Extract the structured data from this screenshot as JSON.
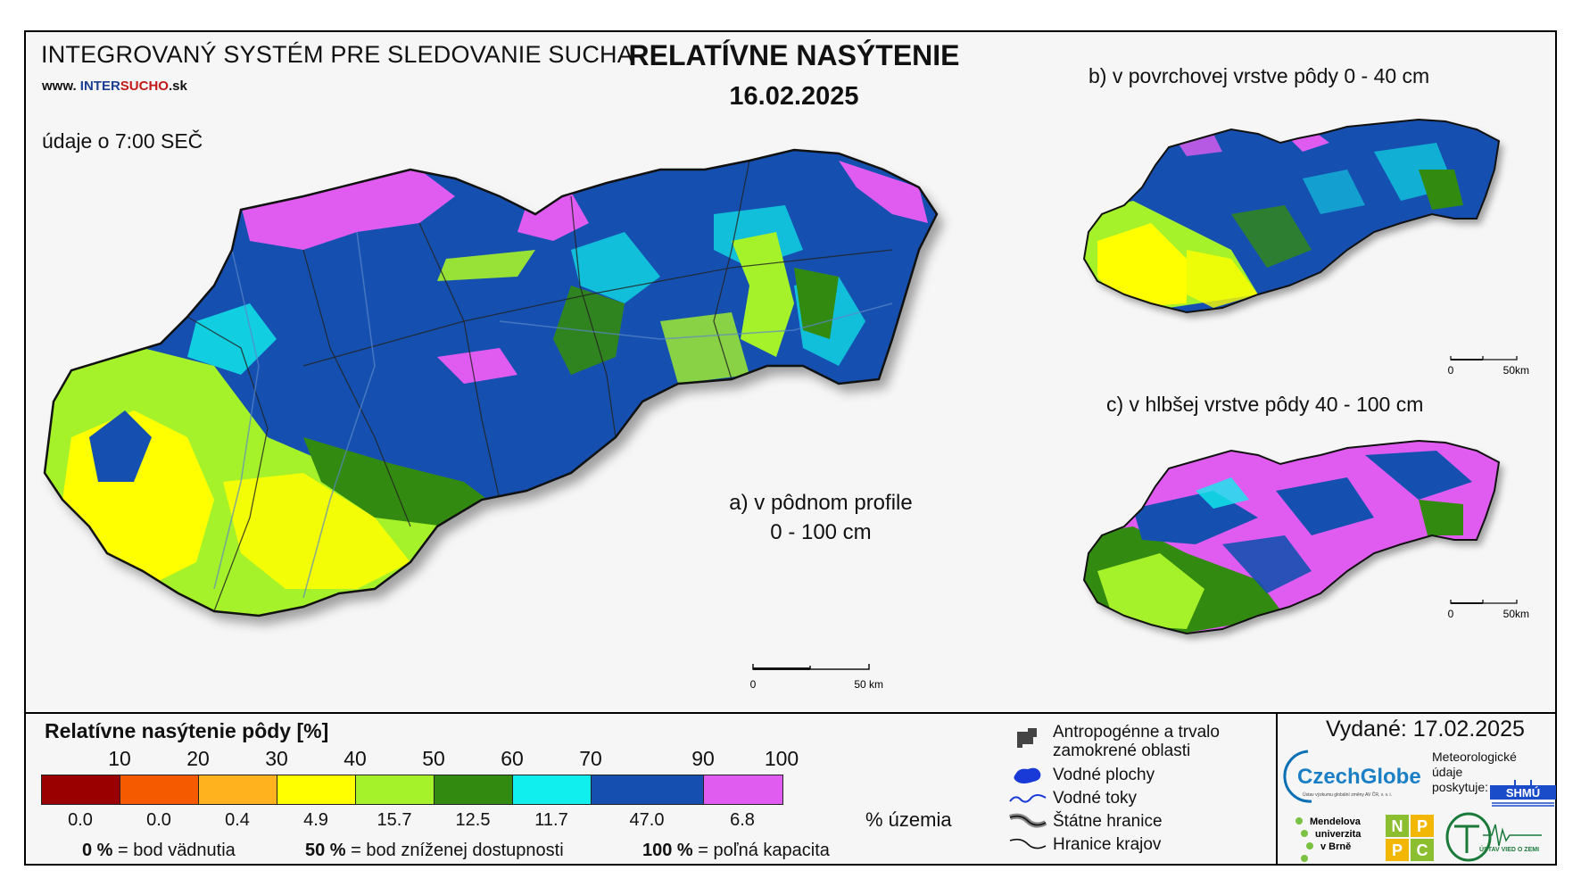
{
  "header": {
    "system_title": "INTEGROVANÝ SYSTÉM PRE SLEDOVANIE SUCHA",
    "www_prefix": "www. ",
    "www_inter": "INTER",
    "www_sucho": "SUCHO",
    "www_suffix": ".sk",
    "data_time": "údaje o 7:00 SEČ",
    "main_title": "RELATÍVNE NASÝTENIE",
    "main_date": "16.02.2025"
  },
  "maps": {
    "a_label_line1": "a) v pôdnom profile",
    "a_label_line2": "0 - 100 cm",
    "b_label": "b) v povrchovej vrstve pôdy 0 - 40 cm",
    "c_label": "c) v hlbšej vrstve pôdy 40 - 100 cm",
    "scale_zero": "0",
    "scale_main": "50 km",
    "scale_small": "50km"
  },
  "legend": {
    "title": "Relatívne nasýtenie pôdy [%]",
    "ticks": [
      "10",
      "20",
      "30",
      "40",
      "50",
      "60",
      "70",
      "90",
      "100"
    ],
    "classes": [
      {
        "color": "#9a0000",
        "share": "0.0"
      },
      {
        "color": "#f65a00",
        "share": "0.0"
      },
      {
        "color": "#ffb21e",
        "share": "0.4"
      },
      {
        "color": "#ffff00",
        "share": "4.9"
      },
      {
        "color": "#a6f22a",
        "share": "15.7"
      },
      {
        "color": "#338a10",
        "share": "12.5"
      },
      {
        "color": "#11eeee",
        "share": "11.7"
      },
      {
        "color": "#1550b0",
        "share": "47.0"
      },
      {
        "color": "#e05cf0",
        "share": "6.8"
      }
    ],
    "share_unit": "% územia",
    "def1_value": "0 %",
    "def1_text": " = bod vädnutia",
    "def2_value": "50 %",
    "def2_text": " = bod zníženej dostupnosti",
    "def3_value": "100 %",
    "def3_text": " = poľná kapacita"
  },
  "symbols": {
    "anthropo_line1": "Antropogénne a trvalo",
    "anthropo_line2": "zamokrené oblasti",
    "water_areas": "Vodné plochy",
    "water_streams": "Vodné toky",
    "state_border": "Štátne hranice",
    "region_border": "Hranice krajov"
  },
  "footer": {
    "issued": "Vydané: 17.02.2025",
    "czechglobe": "CzechGlobe",
    "czechglobe_sub": "Ústav výzkumu globální změny AV ČR, v. v. i.",
    "meteo_line1": "Meteorologické",
    "meteo_line2": "údaje",
    "meteo_line3": "poskytuje:",
    "shmu": "SHMÚ",
    "mendel_1": "Mendelova",
    "mendel_2": "univerzita",
    "mendel_3": "v Brně",
    "nppc": [
      "N",
      "P",
      "P",
      "C"
    ],
    "uvz": "ÚSTAV VIED O ZEMI"
  }
}
